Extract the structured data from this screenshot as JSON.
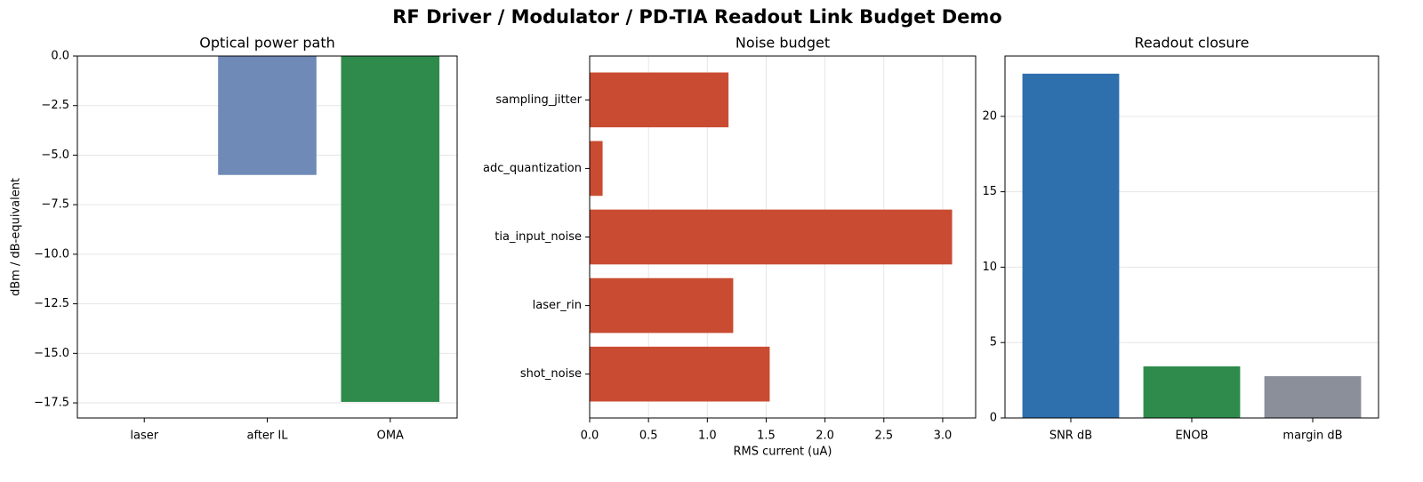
{
  "title": "RF Driver / Modulator / PD-TIA Readout Link Budget Demo",
  "chart_data": [
    {
      "type": "bar",
      "title": "Optical power path",
      "ylabel": "dBm / dB-equivalent",
      "categories": [
        "laser",
        "after IL",
        "OMA"
      ],
      "values": [
        0,
        -6.0,
        -17.45
      ],
      "colors": [
        "#6f8ab7",
        "#6f8ab7",
        "#2e8b4c"
      ],
      "ylim": [
        -18.26,
        0
      ],
      "yticks": [
        {
          "value": 0,
          "label": "0.0"
        },
        {
          "value": -2.5,
          "label": "−2.5"
        },
        {
          "value": -5,
          "label": "−5.0"
        },
        {
          "value": -7.5,
          "label": "−7.5"
        },
        {
          "value": -10,
          "label": "−10.0"
        },
        {
          "value": -12.5,
          "label": "−12.5"
        },
        {
          "value": -15,
          "label": "−15.0"
        },
        {
          "value": -17.5,
          "label": "−17.5"
        }
      ],
      "grid": true
    },
    {
      "type": "barh",
      "title": "Noise budget",
      "xlabel": "RMS current (uA)",
      "categories": [
        "shot_noise",
        "laser_rin",
        "tia_input_noise",
        "adc_quantization",
        "sampling_jitter"
      ],
      "values": [
        1.53,
        1.22,
        3.08,
        0.11,
        1.18
      ],
      "color": "#c94c32",
      "xlim": [
        0,
        3.28
      ],
      "xticks": [
        {
          "value": 0,
          "label": "0.0"
        },
        {
          "value": 0.5,
          "label": "0.5"
        },
        {
          "value": 1,
          "label": "1.0"
        },
        {
          "value": 1.5,
          "label": "1.5"
        },
        {
          "value": 2,
          "label": "2.0"
        },
        {
          "value": 2.5,
          "label": "2.5"
        },
        {
          "value": 3,
          "label": "3.0"
        }
      ],
      "grid": true
    },
    {
      "type": "bar",
      "title": "Readout closure",
      "categories": [
        "SNR dB",
        "ENOB",
        "margin dB"
      ],
      "values": [
        22.83,
        3.42,
        2.77
      ],
      "colors": [
        "#2e6fad",
        "#2e8b4c",
        "#8b8f99"
      ],
      "ylim": [
        0,
        24.0
      ],
      "yticks": [
        0,
        5,
        10,
        15,
        20
      ],
      "grid": true
    }
  ]
}
